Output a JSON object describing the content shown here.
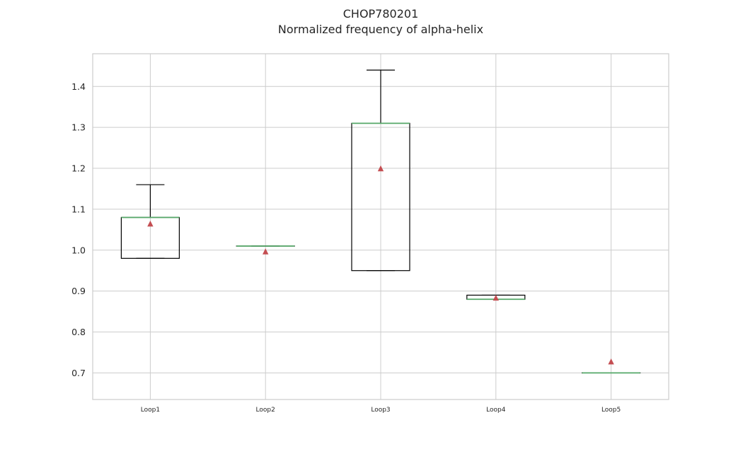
{
  "chart_data": {
    "type": "box",
    "title": "CHOP780201",
    "subtitle": "Normalized frequency of alpha-helix",
    "xlabel": "",
    "ylabel": "",
    "ylim": [
      0.635,
      1.48
    ],
    "yticks": [
      0.7,
      0.8,
      0.9,
      1.0,
      1.1,
      1.2,
      1.3,
      1.4
    ],
    "ytick_labels": [
      "0.7",
      "0.8",
      "0.9",
      "1.0",
      "1.1",
      "1.2",
      "1.3",
      "1.4"
    ],
    "grid": true,
    "categories": [
      "Loop1",
      "Loop2",
      "Loop3",
      "Loop4",
      "Loop5"
    ],
    "boxes": [
      {
        "label": "Loop1",
        "whisker_low": 0.98,
        "q1": 0.98,
        "median": 1.08,
        "q3": 1.08,
        "whisker_high": 1.16,
        "mean": 1.065
      },
      {
        "label": "Loop2",
        "whisker_low": 1.01,
        "q1": 1.01,
        "median": 1.01,
        "q3": 1.01,
        "whisker_high": 1.01,
        "mean": 0.997
      },
      {
        "label": "Loop3",
        "whisker_low": 0.95,
        "q1": 0.95,
        "median": 1.31,
        "q3": 1.31,
        "whisker_high": 1.44,
        "mean": 1.2
      },
      {
        "label": "Loop4",
        "whisker_low": 0.88,
        "q1": 0.88,
        "median": 0.88,
        "q3": 0.89,
        "whisker_high": 0.89,
        "mean": 0.884
      },
      {
        "label": "Loop5",
        "whisker_low": 0.7,
        "q1": 0.7,
        "median": 0.7,
        "q3": 0.7,
        "whisker_high": 0.7,
        "mean": 0.728
      }
    ],
    "colors": {
      "box": "#000000",
      "median": "#55a868",
      "mean_marker": "#c44e52",
      "grid": "#cccccc",
      "frame": "#cccccc"
    }
  }
}
